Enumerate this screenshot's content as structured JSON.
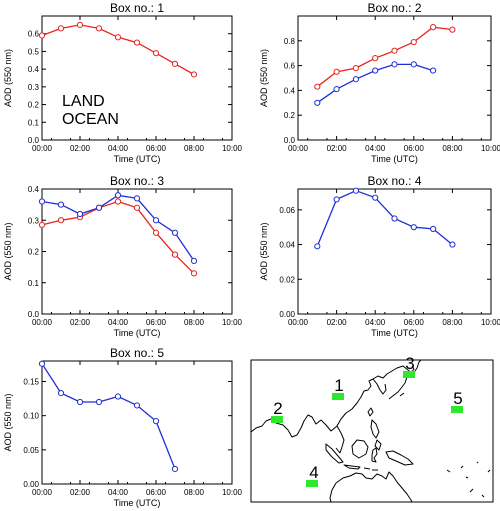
{
  "colors": {
    "land": "#e8251f",
    "ocean": "#1f2fd6",
    "box": "#2ee82e",
    "axis": "#000000"
  },
  "legend": {
    "land": "LAND",
    "ocean": "OCEAN"
  },
  "chart_data": [
    {
      "type": "line",
      "title": "Box no.: 1",
      "xlabel": "Time (UTC)",
      "ylabel": "AOD (550 nm)",
      "x_ticks": [
        "00:00",
        "02:00",
        "04:00",
        "06:00",
        "08:00",
        "10:00"
      ],
      "xlim": [
        0,
        10
      ],
      "ylim": [
        0.0,
        0.7
      ],
      "y_ticks": [
        "0.0",
        "0.1",
        "0.2",
        "0.3",
        "0.4",
        "0.5",
        "0.6"
      ],
      "series": [
        {
          "name": "LAND",
          "x": [
            0,
            1,
            2,
            3,
            4,
            5,
            6,
            7,
            8
          ],
          "values": [
            0.59,
            0.63,
            0.65,
            0.63,
            0.58,
            0.55,
            0.49,
            0.43,
            0.37
          ]
        }
      ]
    },
    {
      "type": "line",
      "title": "Box no.: 2",
      "xlabel": "Time (UTC)",
      "ylabel": "AOD (550 nm)",
      "x_ticks": [
        "00:00",
        "02:00",
        "04:00",
        "06:00",
        "08:00",
        "10:00"
      ],
      "xlim": [
        0,
        10
      ],
      "ylim": [
        0.0,
        1.0
      ],
      "y_ticks": [
        "0.0",
        "0.2",
        "0.4",
        "0.6",
        "0.8"
      ],
      "series": [
        {
          "name": "LAND",
          "x": [
            1,
            2,
            3,
            4,
            5,
            6,
            7,
            8
          ],
          "values": [
            0.43,
            0.55,
            0.58,
            0.66,
            0.72,
            0.79,
            0.91,
            0.89
          ]
        },
        {
          "name": "OCEAN",
          "x": [
            1,
            2,
            3,
            4,
            5,
            6,
            7
          ],
          "values": [
            0.3,
            0.41,
            0.49,
            0.56,
            0.61,
            0.61,
            0.56
          ]
        }
      ]
    },
    {
      "type": "line",
      "title": "Box no.: 3",
      "xlabel": "Time (UTC)",
      "ylabel": "AOD (550 nm)",
      "x_ticks": [
        "00:00",
        "02:00",
        "04:00",
        "06:00",
        "08:00",
        "10:00"
      ],
      "xlim": [
        0,
        10
      ],
      "ylim": [
        0.0,
        0.4
      ],
      "y_ticks": [
        "0.0",
        "0.1",
        "0.2",
        "0.3",
        "0.4"
      ],
      "series": [
        {
          "name": "LAND",
          "x": [
            0,
            1,
            2,
            3,
            4,
            5,
            6,
            7,
            8
          ],
          "values": [
            0.285,
            0.3,
            0.31,
            0.34,
            0.36,
            0.34,
            0.26,
            0.19,
            0.13
          ]
        },
        {
          "name": "OCEAN",
          "x": [
            0,
            1,
            2,
            3,
            4,
            5,
            6,
            7,
            8
          ],
          "values": [
            0.36,
            0.35,
            0.32,
            0.34,
            0.38,
            0.37,
            0.3,
            0.26,
            0.17
          ]
        }
      ]
    },
    {
      "type": "line",
      "title": "Box no.: 4",
      "xlabel": "Time (UTC)",
      "ylabel": "AOD (550 nm)",
      "x_ticks": [
        "00:00",
        "02:00",
        "04:00",
        "06:00",
        "08:00",
        "10:00"
      ],
      "xlim": [
        0,
        10
      ],
      "ylim": [
        0.0,
        0.072
      ],
      "y_ticks": [
        "0.00",
        "0.02",
        "0.04",
        "0.06"
      ],
      "series": [
        {
          "name": "OCEAN",
          "x": [
            1,
            2,
            3,
            4,
            5,
            6,
            7,
            8
          ],
          "values": [
            0.039,
            0.066,
            0.071,
            0.067,
            0.055,
            0.05,
            0.049,
            0.04
          ]
        }
      ]
    },
    {
      "type": "line",
      "title": "Box no.: 5",
      "xlabel": "Time (UTC)",
      "ylabel": "AOD (550 nm)",
      "x_ticks": [
        "00:00",
        "02:00",
        "04:00",
        "06:00",
        "08:00",
        "10:00"
      ],
      "xlim": [
        0,
        10
      ],
      "ylim": [
        0.0,
        0.18
      ],
      "y_ticks": [
        "0.00",
        "0.05",
        "0.10",
        "0.15"
      ],
      "series": [
        {
          "name": "OCEAN",
          "x": [
            0,
            1,
            2,
            3,
            4,
            5,
            6,
            7
          ],
          "values": [
            0.176,
            0.133,
            0.12,
            0.12,
            0.128,
            0.115,
            0.092,
            0.022
          ]
        }
      ]
    }
  ],
  "map": {
    "boxes": [
      {
        "label": "1"
      },
      {
        "label": "2"
      },
      {
        "label": "3"
      },
      {
        "label": "4"
      },
      {
        "label": "5"
      }
    ]
  }
}
